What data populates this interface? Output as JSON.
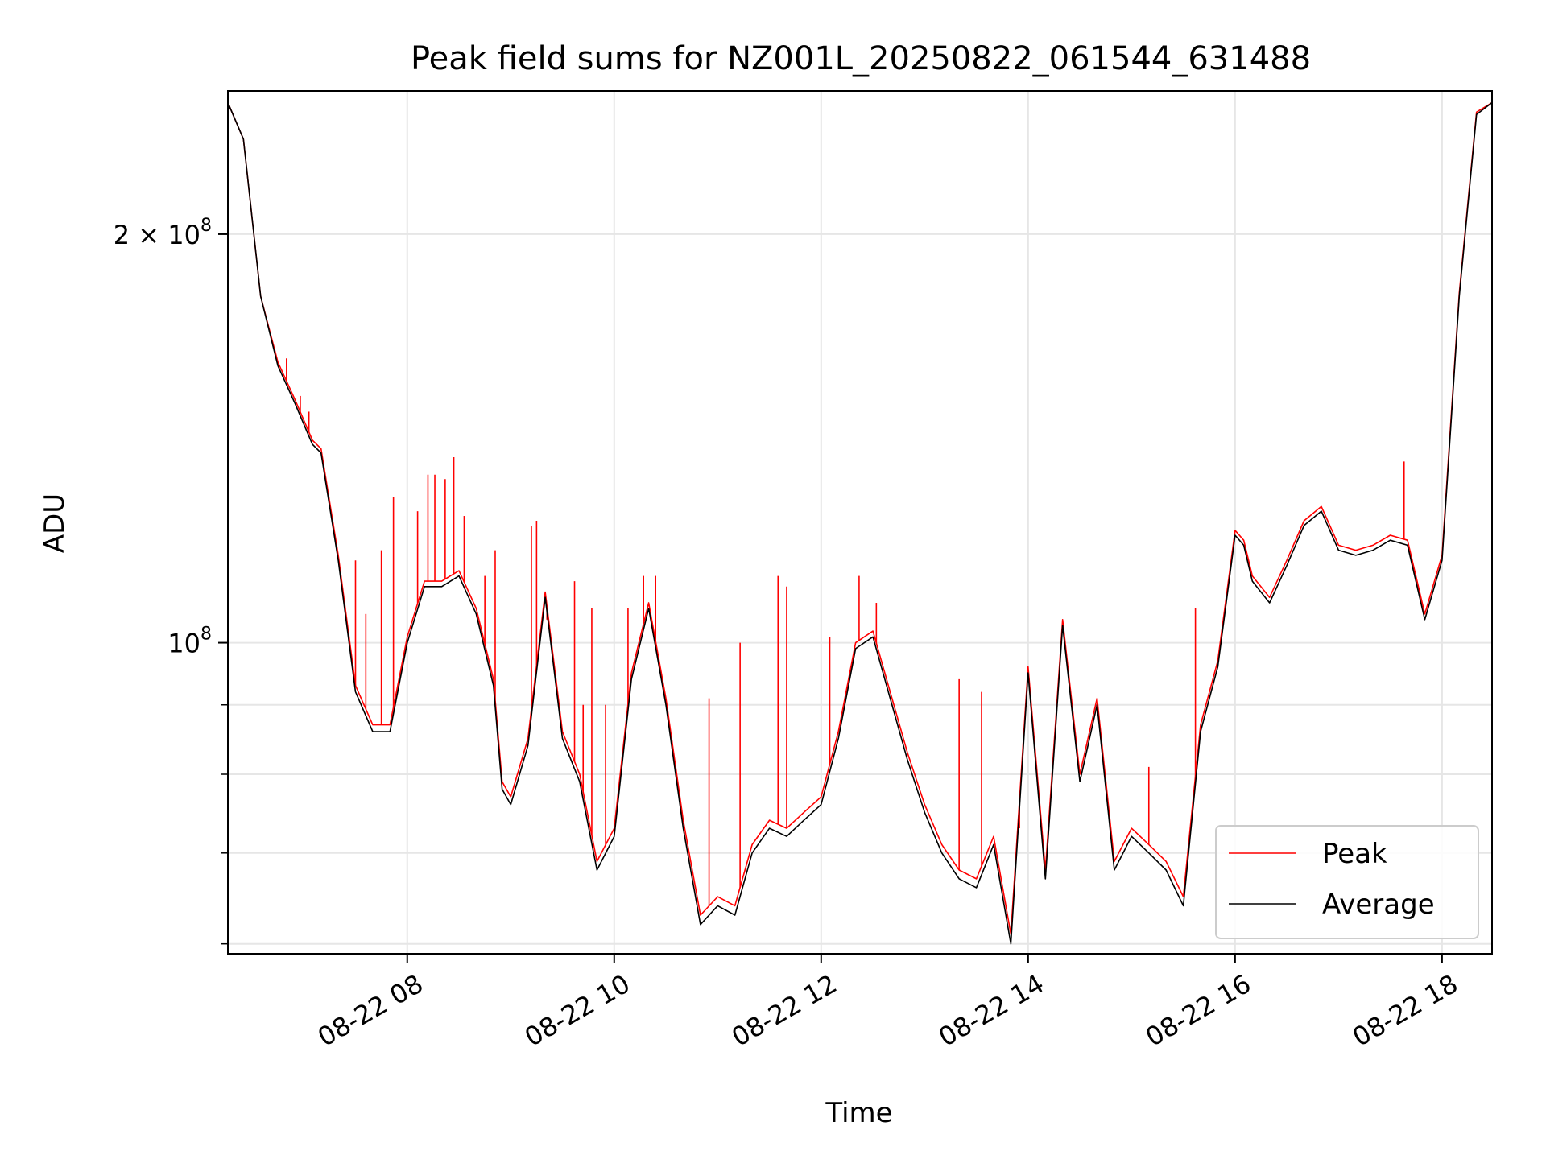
{
  "chart_data": {
    "type": "line",
    "title": "Peak field sums for NZ001L_20250822_061544_631488",
    "xlabel": "Time",
    "ylabel": "ADU",
    "x_tick_labels": [
      "08-22 08",
      "08-22 10",
      "08-22 12",
      "08-22 14",
      "08-22 16",
      "08-22 18"
    ],
    "x_tick_values": [
      "2025-08-22T08:00",
      "2025-08-22T10:00",
      "2025-08-22T12:00",
      "2025-08-22T14:00",
      "2025-08-22T16:00",
      "2025-08-22T18:00"
    ],
    "y_tick_labels": [
      {
        "mantissa": "2",
        "times": "×",
        "base": "10",
        "exp": "8",
        "value": 200000000
      },
      {
        "mantissa": "",
        "times": "",
        "base": "10",
        "exp": "8",
        "value": 100000000
      }
    ],
    "y_scale": "log",
    "ylim": [
      59000000,
      255000000
    ],
    "xlim": [
      "2025-08-22T06:16",
      "2025-08-22T18:29"
    ],
    "grid": true,
    "legend_position": "lower right",
    "legend": [
      "Peak",
      "Average"
    ],
    "colors": {
      "Peak": "#ff0000",
      "Average": "#000000"
    },
    "series": [
      {
        "name": "Average",
        "x": [
          "2025-08-22T06:16",
          "2025-08-22T06:25",
          "2025-08-22T06:35",
          "2025-08-22T06:45",
          "2025-08-22T06:55",
          "2025-08-22T07:05",
          "2025-08-22T07:10",
          "2025-08-22T07:20",
          "2025-08-22T07:30",
          "2025-08-22T07:40",
          "2025-08-22T07:50",
          "2025-08-22T08:00",
          "2025-08-22T08:10",
          "2025-08-22T08:20",
          "2025-08-22T08:30",
          "2025-08-22T08:40",
          "2025-08-22T08:50",
          "2025-08-22T08:55",
          "2025-08-22T09:00",
          "2025-08-22T09:10",
          "2025-08-22T09:20",
          "2025-08-22T09:30",
          "2025-08-22T09:40",
          "2025-08-22T09:50",
          "2025-08-22T10:00",
          "2025-08-22T10:10",
          "2025-08-22T10:20",
          "2025-08-22T10:30",
          "2025-08-22T10:40",
          "2025-08-22T10:50",
          "2025-08-22T11:00",
          "2025-08-22T11:10",
          "2025-08-22T11:20",
          "2025-08-22T11:30",
          "2025-08-22T11:40",
          "2025-08-22T11:50",
          "2025-08-22T12:00",
          "2025-08-22T12:10",
          "2025-08-22T12:20",
          "2025-08-22T12:30",
          "2025-08-22T12:40",
          "2025-08-22T12:50",
          "2025-08-22T13:00",
          "2025-08-22T13:10",
          "2025-08-22T13:20",
          "2025-08-22T13:30",
          "2025-08-22T13:40",
          "2025-08-22T13:50",
          "2025-08-22T14:00",
          "2025-08-22T14:10",
          "2025-08-22T14:20",
          "2025-08-22T14:30",
          "2025-08-22T14:40",
          "2025-08-22T14:50",
          "2025-08-22T15:00",
          "2025-08-22T15:10",
          "2025-08-22T15:20",
          "2025-08-22T15:30",
          "2025-08-22T15:40",
          "2025-08-22T15:50",
          "2025-08-22T16:00",
          "2025-08-22T16:05",
          "2025-08-22T16:10",
          "2025-08-22T16:20",
          "2025-08-22T16:30",
          "2025-08-22T16:40",
          "2025-08-22T16:50",
          "2025-08-22T17:00",
          "2025-08-22T17:10",
          "2025-08-22T17:20",
          "2025-08-22T17:30",
          "2025-08-22T17:40",
          "2025-08-22T17:50",
          "2025-08-22T18:00",
          "2025-08-22T18:10",
          "2025-08-22T18:20",
          "2025-08-22T18:29"
        ],
        "values": [
          250000000,
          235000000,
          180000000,
          160000000,
          150000000,
          140000000,
          138000000,
          115000000,
          92000000,
          86000000,
          86000000,
          100000000,
          110000000,
          110000000,
          112000000,
          105000000,
          93000000,
          78000000,
          76000000,
          84000000,
          108000000,
          85000000,
          79000000,
          68000000,
          72000000,
          94000000,
          106000000,
          90000000,
          73000000,
          62000000,
          64000000,
          63000000,
          70000000,
          73000000,
          72000000,
          74000000,
          76000000,
          85000000,
          99000000,
          101000000,
          91000000,
          82000000,
          75000000,
          70000000,
          67000000,
          66000000,
          71000000,
          60000000,
          95000000,
          67000000,
          103000000,
          79000000,
          90000000,
          68000000,
          72000000,
          70000000,
          68000000,
          64000000,
          86000000,
          96000000,
          120000000,
          118000000,
          111000000,
          107000000,
          114000000,
          122000000,
          125000000,
          117000000,
          116000000,
          117000000,
          119000000,
          118000000,
          104000000,
          115000000,
          180000000,
          245000000,
          250000000
        ]
      },
      {
        "name": "Peak",
        "x": [
          "2025-08-22T06:16",
          "2025-08-22T06:25",
          "2025-08-22T06:35",
          "2025-08-22T06:45",
          "2025-08-22T06:55",
          "2025-08-22T07:05",
          "2025-08-22T07:10",
          "2025-08-22T07:20",
          "2025-08-22T07:30",
          "2025-08-22T07:40",
          "2025-08-22T07:50",
          "2025-08-22T08:00",
          "2025-08-22T08:10",
          "2025-08-22T08:20",
          "2025-08-22T08:30",
          "2025-08-22T08:40",
          "2025-08-22T08:50",
          "2025-08-22T08:55",
          "2025-08-22T09:00",
          "2025-08-22T09:10",
          "2025-08-22T09:20",
          "2025-08-22T09:30",
          "2025-08-22T09:40",
          "2025-08-22T09:50",
          "2025-08-22T10:00",
          "2025-08-22T10:10",
          "2025-08-22T10:20",
          "2025-08-22T10:30",
          "2025-08-22T10:40",
          "2025-08-22T10:50",
          "2025-08-22T11:00",
          "2025-08-22T11:10",
          "2025-08-22T11:20",
          "2025-08-22T11:30",
          "2025-08-22T11:40",
          "2025-08-22T11:50",
          "2025-08-22T12:00",
          "2025-08-22T12:10",
          "2025-08-22T12:20",
          "2025-08-22T12:30",
          "2025-08-22T12:40",
          "2025-08-22T12:50",
          "2025-08-22T13:00",
          "2025-08-22T13:10",
          "2025-08-22T13:20",
          "2025-08-22T13:30",
          "2025-08-22T13:40",
          "2025-08-22T13:50",
          "2025-08-22T14:00",
          "2025-08-22T14:10",
          "2025-08-22T14:20",
          "2025-08-22T14:30",
          "2025-08-22T14:40",
          "2025-08-22T14:50",
          "2025-08-22T15:00",
          "2025-08-22T15:10",
          "2025-08-22T15:20",
          "2025-08-22T15:30",
          "2025-08-22T15:40",
          "2025-08-22T15:50",
          "2025-08-22T16:00",
          "2025-08-22T16:05",
          "2025-08-22T16:10",
          "2025-08-22T16:20",
          "2025-08-22T16:30",
          "2025-08-22T16:40",
          "2025-08-22T16:50",
          "2025-08-22T17:00",
          "2025-08-22T17:10",
          "2025-08-22T17:20",
          "2025-08-22T17:30",
          "2025-08-22T17:40",
          "2025-08-22T17:50",
          "2025-08-22T18:00",
          "2025-08-22T18:10",
          "2025-08-22T18:20",
          "2025-08-22T18:29"
        ],
        "values": [
          250000000,
          235000000,
          180000000,
          161000000,
          151000000,
          141000000,
          139000000,
          116000000,
          93000000,
          87000000,
          87000000,
          101000000,
          111000000,
          111000000,
          113000000,
          106000000,
          94000000,
          79000000,
          77000000,
          85000000,
          109000000,
          86000000,
          80000000,
          69000000,
          73000000,
          95000000,
          107000000,
          91000000,
          74000000,
          63000000,
          65000000,
          64000000,
          71000000,
          74000000,
          73000000,
          75000000,
          77000000,
          86000000,
          100000000,
          102000000,
          92000000,
          83000000,
          76000000,
          71000000,
          68000000,
          67000000,
          72000000,
          61000000,
          96000000,
          68000000,
          104000000,
          80000000,
          91000000,
          69000000,
          73000000,
          71000000,
          69000000,
          65000000,
          87000000,
          97000000,
          121000000,
          119000000,
          112000000,
          108000000,
          115000000,
          123000000,
          126000000,
          118000000,
          117000000,
          118000000,
          120000000,
          119000000,
          105000000,
          116000000,
          181000000,
          246000000,
          250000000
        ],
        "spikes": [
          {
            "x": "2025-08-22T06:50",
            "value": 162000000
          },
          {
            "x": "2025-08-22T06:58",
            "value": 152000000
          },
          {
            "x": "2025-08-22T07:03",
            "value": 148000000
          },
          {
            "x": "2025-08-22T07:30",
            "value": 115000000
          },
          {
            "x": "2025-08-22T07:36",
            "value": 105000000
          },
          {
            "x": "2025-08-22T07:45",
            "value": 117000000
          },
          {
            "x": "2025-08-22T07:52",
            "value": 128000000
          },
          {
            "x": "2025-08-22T08:06",
            "value": 125000000
          },
          {
            "x": "2025-08-22T08:12",
            "value": 133000000
          },
          {
            "x": "2025-08-22T08:16",
            "value": 133000000
          },
          {
            "x": "2025-08-22T08:22",
            "value": 132000000
          },
          {
            "x": "2025-08-22T08:27",
            "value": 137000000
          },
          {
            "x": "2025-08-22T08:33",
            "value": 124000000
          },
          {
            "x": "2025-08-22T08:45",
            "value": 112000000
          },
          {
            "x": "2025-08-22T08:51",
            "value": 117000000
          },
          {
            "x": "2025-08-22T09:12",
            "value": 122000000
          },
          {
            "x": "2025-08-22T09:15",
            "value": 123000000
          },
          {
            "x": "2025-08-22T09:21",
            "value": 104000000
          },
          {
            "x": "2025-08-22T09:37",
            "value": 111000000
          },
          {
            "x": "2025-08-22T09:42",
            "value": 90000000
          },
          {
            "x": "2025-08-22T09:47",
            "value": 106000000
          },
          {
            "x": "2025-08-22T09:55",
            "value": 90000000
          },
          {
            "x": "2025-08-22T10:08",
            "value": 106000000
          },
          {
            "x": "2025-08-22T10:17",
            "value": 112000000
          },
          {
            "x": "2025-08-22T10:24",
            "value": 112000000
          },
          {
            "x": "2025-08-22T10:55",
            "value": 91000000
          },
          {
            "x": "2025-08-22T11:13",
            "value": 100000000
          },
          {
            "x": "2025-08-22T11:35",
            "value": 112000000
          },
          {
            "x": "2025-08-22T11:40",
            "value": 110000000
          },
          {
            "x": "2025-08-22T12:05",
            "value": 101000000
          },
          {
            "x": "2025-08-22T12:22",
            "value": 112000000
          },
          {
            "x": "2025-08-22T12:32",
            "value": 107000000
          },
          {
            "x": "2025-08-22T13:20",
            "value": 94000000
          },
          {
            "x": "2025-08-22T13:33",
            "value": 92000000
          },
          {
            "x": "2025-08-22T13:55",
            "value": 73000000
          },
          {
            "x": "2025-08-22T15:10",
            "value": 81000000
          },
          {
            "x": "2025-08-22T15:37",
            "value": 106000000
          },
          {
            "x": "2025-08-22T17:38",
            "value": 136000000
          }
        ]
      }
    ]
  }
}
